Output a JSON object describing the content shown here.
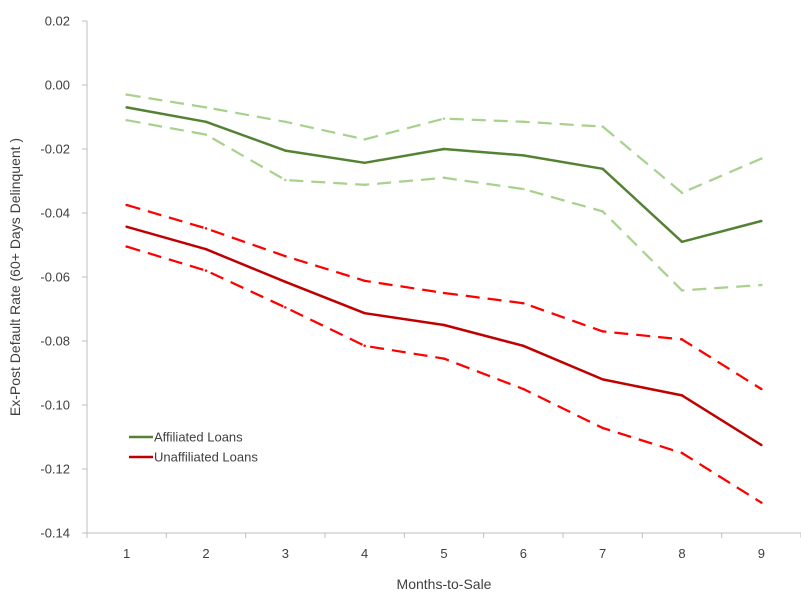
{
  "chart_data": {
    "type": "line",
    "title": "",
    "xlabel": "Months-to-Sale",
    "ylabel": "Ex-Post Default Rate (60+ Days Delinquent )",
    "x": [
      1,
      2,
      3,
      4,
      5,
      6,
      7,
      8,
      9
    ],
    "ylim": [
      -0.14,
      0.02
    ],
    "yticks": [
      0.02,
      0.0,
      -0.02,
      -0.04,
      -0.06,
      -0.08,
      -0.1,
      -0.12,
      -0.14
    ],
    "ytick_labels": [
      "0.02",
      "0.00",
      "-0.02",
      "-0.04",
      "-0.06",
      "-0.08",
      "-0.10",
      "-0.12",
      "-0.14"
    ],
    "xtick_labels": [
      "1",
      "2",
      "3",
      "4",
      "5",
      "6",
      "7",
      "8",
      "9"
    ],
    "grid": false,
    "legend_position": "lower-left",
    "series": [
      {
        "name": "Affiliated Loans",
        "role": "estimate",
        "color": "#548235",
        "dashed": false,
        "in_legend": true,
        "values": [
          -0.007,
          -0.0115,
          -0.0205,
          -0.0243,
          -0.02,
          -0.022,
          -0.0262,
          -0.049,
          -0.0425
        ]
      },
      {
        "role": "ci_upper",
        "color": "#A9D18E",
        "dashed": true,
        "in_legend": false,
        "values": [
          -0.003,
          -0.007,
          -0.0115,
          -0.017,
          -0.0105,
          -0.0115,
          -0.013,
          -0.0337,
          -0.023
        ]
      },
      {
        "role": "ci_lower",
        "color": "#A9D18E",
        "dashed": true,
        "in_legend": false,
        "values": [
          -0.011,
          -0.0155,
          -0.0297,
          -0.0312,
          -0.029,
          -0.0325,
          -0.0395,
          -0.0642,
          -0.0625
        ]
      },
      {
        "name": "Unaffiliated Loans",
        "role": "estimate",
        "color": "#C00000",
        "dashed": false,
        "in_legend": true,
        "values": [
          -0.0443,
          -0.0513,
          -0.0615,
          -0.0713,
          -0.075,
          -0.0815,
          -0.092,
          -0.097,
          -0.1125
        ]
      },
      {
        "role": "ci_upper",
        "color": "#FF0000",
        "dashed": true,
        "in_legend": false,
        "values": [
          -0.0375,
          -0.0448,
          -0.0535,
          -0.0612,
          -0.065,
          -0.0682,
          -0.077,
          -0.0795,
          -0.095
        ]
      },
      {
        "role": "ci_lower",
        "color": "#FF0000",
        "dashed": true,
        "in_legend": false,
        "values": [
          -0.0505,
          -0.058,
          -0.0695,
          -0.0815,
          -0.0855,
          -0.095,
          -0.1072,
          -0.115,
          -0.1305
        ]
      }
    ]
  }
}
